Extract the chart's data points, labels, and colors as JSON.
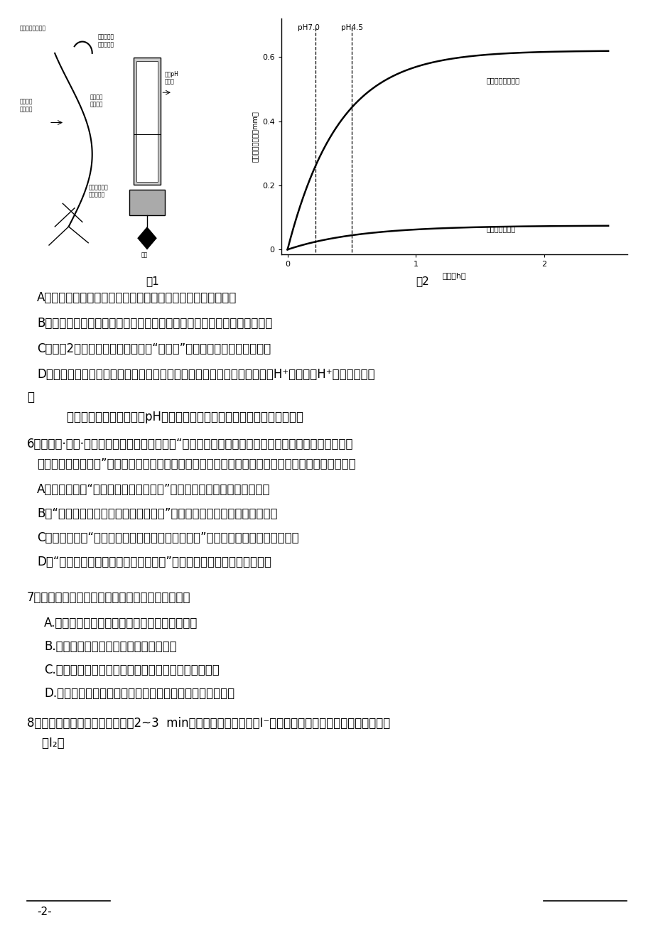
{
  "bg_color": "#ffffff",
  "fig_label1": "图1",
  "fig_label2": "图2",
  "option_A_q5": "A．多细胞植物体的伸长生长是细胞数量和细胞体积增加的结果",
  "option_B_q5": "B．对冰冻融化后的切段进行加热或不加热处理，然后测定切段增加的长度",
  "option_C_q5": "C．由图2结果推测，决定黄瓜切断“酸生长”特性的物质最可能是蛋白质",
  "option_D_q5_part1": "D．生长素促进细胞生长的可能机制是生长素与受体结合，激活了膜上运输H⁺的泵，将H⁺从细胞内转运",
  "option_D_q5_part2": "到",
  "option_D_q5_part3": "        细胞外的细胞壁中，降低pH，促进细胞壁伸展，进而促进细胞体积增大。",
  "q6_stem": "6．《庄子·内篇·人间世》中，庄子对弟子说：“桂可食，故伐之；漆可用，故割之。人皆知有用之用，",
  "q6_stem2": "而莫知无用之用也。”从中可见，我国古人很早就已经意识到生态文明的重要意义。以下说法错误的是",
  "option_A_q6": "A．庄子的话和“绿水青山就是金山銀山”都体现了保护生物多样性的价值",
  "option_B_q6": "B．“銀烛秋光冷画屏，轻罗小扇扑流萤”，体现了生态系统信息传递的功能",
  "option_C_q6": "C．《韩非子》“人民众而货财寡，事力劳而供养薄”体现了节制人口增长的重要性",
  "option_D_q6": "D．“有心栽花花不开，无心插柳柳成药”体现了生态系统物质循环的功能",
  "q7_stem": "7、化学与生产、生活密切相关。下列说法正确的是",
  "option_A_q7": "A.漂白粉杀菌与活性炭除去水中异味的原理相同",
  "option_B_q7": "B.硫酸铁晶体可用于袋装食品中的脱氧剂",
  "option_C_q7": "C.地沟油可用来生产肥皂、甘油，达到废物利用的目的",
  "option_D_q7": "D.利用石英可生产高纯硅，高纯硅是制光导纤维的重要材料",
  "q8_stem": "8．某同学取海带灰加蕊馏水煮沑2~3  min，冷却，过滤，获得含I⁻的溶液，并设计以下实验方案，从中提",
  "q8_stem2": "    取I₂。",
  "page_num": "-2-"
}
